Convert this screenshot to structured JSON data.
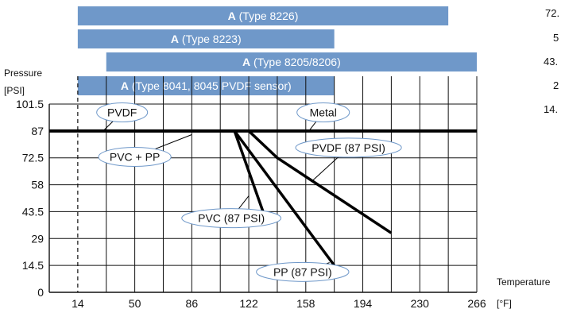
{
  "chart_data": {
    "type": "line",
    "x_ticks": [
      "14",
      "50",
      "86",
      "122",
      "158",
      "194",
      "230",
      "266"
    ],
    "y_ticks": [
      "0",
      "14.5",
      "29",
      "43.5",
      "58",
      "72.5",
      "87",
      "101.5"
    ],
    "y_axis_label_1": "Pressure",
    "y_axis_label_2": "[PSI]",
    "x_axis_label_1": "Temperature",
    "x_axis_label_2": "[°F]",
    "xlim": [
      -4,
      266
    ],
    "ylim": [
      0,
      101.5
    ],
    "dashed_reference_x": 14,
    "ranges": [
      {
        "prefix": "A",
        "text": " (Type 8226)",
        "x_start": 14,
        "x_end": 248,
        "color": "#6f98c9"
      },
      {
        "prefix": "A",
        "text": " (Type 8223)",
        "x_start": 14,
        "x_end": 176,
        "color": "#6f98c9"
      },
      {
        "prefix": "A",
        "text": " (Type 8205/8206)",
        "x_start": 32,
        "x_end": 266,
        "color": "#6f98c9"
      },
      {
        "prefix": "A",
        "text": " (Type 8041, 8045 PVDF sensor)",
        "x_start": 14,
        "x_end": 176,
        "color": "#6f98c9"
      }
    ],
    "series": [
      {
        "points": [
          [
            -4,
            87
          ],
          [
            266,
            87
          ]
        ],
        "color": "#000000"
      },
      {
        "points": [
          [
            32,
            87
          ],
          [
            113,
            87
          ],
          [
            176,
            14.5
          ]
        ],
        "color": "#000000"
      },
      {
        "points": [
          [
            32,
            87
          ],
          [
            113,
            87
          ],
          [
            131,
            43.5
          ]
        ],
        "color": "#000000"
      },
      {
        "points": [
          [
            122,
            87
          ],
          [
            140,
            72.5
          ],
          [
            212,
            32
          ]
        ],
        "color": "#000000"
      }
    ],
    "annotations": [
      {
        "text": "PVDF",
        "x": 42,
        "y": 97,
        "target_x": 30,
        "target_y": 87
      },
      {
        "text": "Metal",
        "x": 169,
        "y": 97,
        "target_x": 160,
        "target_y": 87
      },
      {
        "text": "PVC + PP",
        "x": 50,
        "y": 73,
        "target_x": 86,
        "target_y": 85
      },
      {
        "text": "PVDF (87 PSI)",
        "x": 185,
        "y": 78,
        "target_x": 162,
        "target_y": 60
      },
      {
        "text": "PVC (87 PSI)",
        "x": 111,
        "y": 40,
        "target_x": 122,
        "target_y": 52
      },
      {
        "text": "PP (87 PSI)",
        "x": 156,
        "y": 11,
        "target_x": 173,
        "target_y": 16
      }
    ],
    "side_labels": [
      "72.",
      "5",
      "43.",
      "2",
      "14."
    ],
    "grid": true
  }
}
